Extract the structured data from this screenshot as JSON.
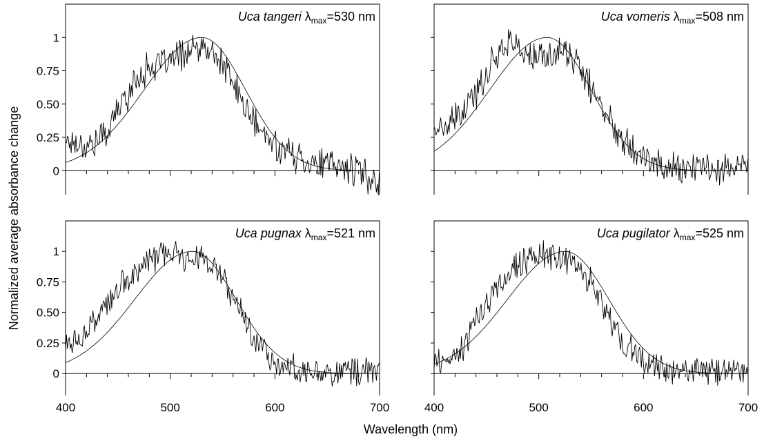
{
  "figure": {
    "shared_ylabel": "Normalized average absorbance change",
    "shared_xlabel": "Wavelength (nm)"
  },
  "chart_data": [
    {
      "type": "line",
      "title": {
        "species": "Uca tangeri",
        "lambda": "λ",
        "sub": "max",
        "value": "=530 nm"
      },
      "lambda_max": 530,
      "xlim": [
        400,
        700
      ],
      "ylim": [
        -0.18,
        1.25
      ],
      "x_ticks": [],
      "y_ticks": [
        "0",
        "0.25",
        "0.50",
        "0.75",
        "1"
      ],
      "series": [
        {
          "kind": "measured",
          "x": [
            400,
            410,
            420,
            430,
            440,
            450,
            460,
            470,
            480,
            490,
            500,
            510,
            520,
            530,
            540,
            550,
            560,
            570,
            580,
            590,
            600,
            610,
            620,
            630,
            640,
            650,
            660,
            670,
            680,
            690,
            700
          ],
          "y": [
            0.24,
            0.21,
            0.19,
            0.22,
            0.3,
            0.46,
            0.58,
            0.71,
            0.78,
            0.79,
            0.82,
            0.87,
            0.9,
            0.91,
            0.88,
            0.8,
            0.66,
            0.5,
            0.36,
            0.26,
            0.2,
            0.15,
            0.11,
            0.08,
            0.06,
            0.04,
            0.03,
            0.02,
            0.0,
            -0.05,
            -0.08
          ]
        },
        {
          "kind": "template_fit",
          "lambda_max": 530
        }
      ]
    },
    {
      "type": "line",
      "title": {
        "species": "Uca vomeris",
        "lambda": "λ",
        "sub": "max",
        "value": "=508 nm"
      },
      "lambda_max": 508,
      "xlim": [
        400,
        700
      ],
      "ylim": [
        -0.18,
        1.25
      ],
      "x_ticks": [],
      "y_ticks": [
        "",
        "",
        "",
        "",
        ""
      ],
      "series": [
        {
          "kind": "measured",
          "x": [
            400,
            410,
            420,
            430,
            440,
            450,
            460,
            470,
            480,
            490,
            500,
            510,
            520,
            530,
            540,
            550,
            560,
            570,
            580,
            590,
            600,
            610,
            620,
            630,
            640,
            650,
            660,
            670,
            680,
            690,
            700
          ],
          "y": [
            0.33,
            0.3,
            0.38,
            0.45,
            0.58,
            0.73,
            0.88,
            0.98,
            0.93,
            0.85,
            0.84,
            0.86,
            0.9,
            0.87,
            0.75,
            0.62,
            0.48,
            0.35,
            0.26,
            0.19,
            0.11,
            0.06,
            0.03,
            0.02,
            0.02,
            0.02,
            0.02,
            0.03,
            0.02,
            0.02,
            0.02
          ]
        },
        {
          "kind": "template_fit",
          "lambda_max": 508
        }
      ]
    },
    {
      "type": "line",
      "title": {
        "species": "Uca pugnax",
        "lambda": "λ",
        "sub": "max",
        "value": "=521 nm"
      },
      "lambda_max": 521,
      "xlim": [
        400,
        700
      ],
      "ylim": [
        -0.18,
        1.25
      ],
      "x_ticks": [
        "400",
        "500",
        "600",
        "700"
      ],
      "y_ticks": [
        "0",
        "0.25",
        "0.50",
        "0.75",
        "1"
      ],
      "series": [
        {
          "kind": "measured",
          "x": [
            400,
            410,
            420,
            430,
            440,
            450,
            460,
            470,
            480,
            490,
            500,
            510,
            520,
            530,
            540,
            550,
            560,
            570,
            580,
            590,
            600,
            610,
            620,
            630,
            640,
            650,
            660,
            670,
            680,
            690,
            700
          ],
          "y": [
            0.24,
            0.26,
            0.34,
            0.45,
            0.56,
            0.67,
            0.78,
            0.86,
            0.93,
            0.96,
            0.97,
            0.96,
            0.97,
            0.96,
            0.88,
            0.77,
            0.62,
            0.46,
            0.31,
            0.19,
            0.11,
            0.06,
            0.03,
            0.02,
            0.02,
            0.02,
            0.02,
            0.02,
            0.02,
            0.02,
            0.02
          ]
        },
        {
          "kind": "template_fit",
          "lambda_max": 521
        }
      ]
    },
    {
      "type": "line",
      "title": {
        "species": "Uca pugilator",
        "lambda": "λ",
        "sub": "max",
        "value": "=525 nm"
      },
      "lambda_max": 525,
      "xlim": [
        400,
        700
      ],
      "ylim": [
        -0.18,
        1.25
      ],
      "x_ticks": [
        "400",
        "500",
        "600",
        "700"
      ],
      "y_ticks": [
        "",
        "",
        "",
        "",
        ""
      ],
      "series": [
        {
          "kind": "measured",
          "x": [
            400,
            410,
            420,
            430,
            440,
            450,
            460,
            470,
            480,
            490,
            500,
            510,
            520,
            530,
            540,
            550,
            560,
            570,
            580,
            590,
            600,
            610,
            620,
            630,
            640,
            650,
            660,
            670,
            680,
            690,
            700
          ],
          "y": [
            0.08,
            0.07,
            0.14,
            0.25,
            0.42,
            0.57,
            0.7,
            0.8,
            0.89,
            0.95,
            0.97,
            0.96,
            0.95,
            0.92,
            0.85,
            0.74,
            0.58,
            0.41,
            0.27,
            0.17,
            0.1,
            0.06,
            0.03,
            0.02,
            0.02,
            0.02,
            0.02,
            0.02,
            0.02,
            0.02,
            0.02
          ]
        },
        {
          "kind": "template_fit",
          "lambda_max": 525
        }
      ]
    }
  ]
}
